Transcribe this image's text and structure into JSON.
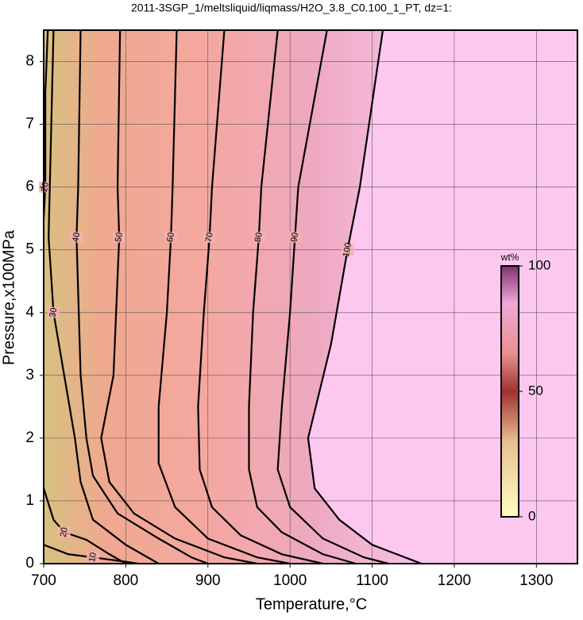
{
  "chart_data": {
    "type": "contour",
    "title": "2011-3SGP_1/meltsliquid/liqmass/H2O_3.8_C0.100_1_PT, dz=1:",
    "xlabel": "Temperature,°C",
    "ylabel": "Pressure,x100MPa",
    "xlim": [
      700,
      1350
    ],
    "ylim": [
      0,
      8.5
    ],
    "xticks": [
      700,
      800,
      900,
      1000,
      1100,
      1200,
      1300
    ],
    "yticks": [
      0,
      1,
      2,
      3,
      4,
      5,
      6,
      7,
      8
    ],
    "grid": true,
    "colorbar": {
      "label": "wt%",
      "lim": [
        0,
        100
      ],
      "ticks": [
        0,
        50,
        100
      ]
    },
    "contours": [
      {
        "level": 10,
        "x": [
          700,
          730,
          760,
          800,
          815
        ],
        "y": [
          0.3,
          0.15,
          0.1,
          0.03,
          0
        ]
      },
      {
        "level": 20,
        "x": [
          705,
          702,
          702,
          700,
          null,
          700,
          712,
          725,
          752,
          780,
          800
        ],
        "y": [
          8.5,
          7.5,
          6,
          5.5,
          null,
          1.2,
          0.7,
          0.5,
          0.38,
          0.15,
          0
        ]
      },
      {
        "level": 30,
        "x": [
          712,
          706,
          712,
          725,
          738,
          745,
          760,
          800,
          840
        ],
        "y": [
          8.5,
          5.2,
          4,
          3,
          2,
          1.3,
          0.7,
          0.3,
          0
        ]
      },
      {
        "level": 40,
        "x": [
          745,
          742,
          740,
          745,
          752,
          760,
          790,
          840,
          880,
          900
        ],
        "y": [
          8.5,
          6,
          5.2,
          3,
          2,
          1.4,
          0.8,
          0.4,
          0.1,
          0
        ]
      },
      {
        "level": 50,
        "x": [
          793,
          790,
          792,
          785,
          770,
          780,
          810,
          860,
          920,
          960
        ],
        "y": [
          8.5,
          6,
          5.2,
          3,
          2,
          1.3,
          0.8,
          0.4,
          0.1,
          0
        ]
      },
      {
        "level": 60,
        "x": [
          862,
          857,
          855,
          850,
          840,
          840,
          860,
          900,
          960,
          1000
        ],
        "y": [
          8.5,
          6,
          5.2,
          4,
          2.5,
          1.6,
          0.9,
          0.4,
          0.1,
          0
        ]
      },
      {
        "level": 70,
        "x": [
          920,
          905,
          902,
          895,
          888,
          890,
          905,
          940,
          990,
          1040
        ],
        "y": [
          8.5,
          6,
          5.2,
          4,
          2.5,
          1.5,
          0.9,
          0.45,
          0.15,
          0
        ]
      },
      {
        "level": 80,
        "x": [
          985,
          965,
          962,
          955,
          950,
          950,
          960,
          990,
          1040,
          1080
        ],
        "y": [
          8.5,
          6,
          5.2,
          4,
          2.5,
          1.5,
          0.9,
          0.5,
          0.15,
          0
        ]
      },
      {
        "level": 90,
        "x": [
          1045,
          1010,
          1006,
          1000,
          990,
          985,
          1000,
          1040,
          1090,
          1120
        ],
        "y": [
          8.5,
          6,
          5.2,
          4,
          2.5,
          1.5,
          0.9,
          0.4,
          0.1,
          0
        ]
      },
      {
        "level": 100,
        "x": [
          1113,
          1085,
          1070,
          1050,
          1022,
          1030,
          1060,
          1100,
          1150,
          1160
        ],
        "y": [
          8.5,
          6,
          5,
          3.5,
          2,
          1.2,
          0.7,
          0.3,
          0.05,
          0
        ]
      }
    ]
  }
}
